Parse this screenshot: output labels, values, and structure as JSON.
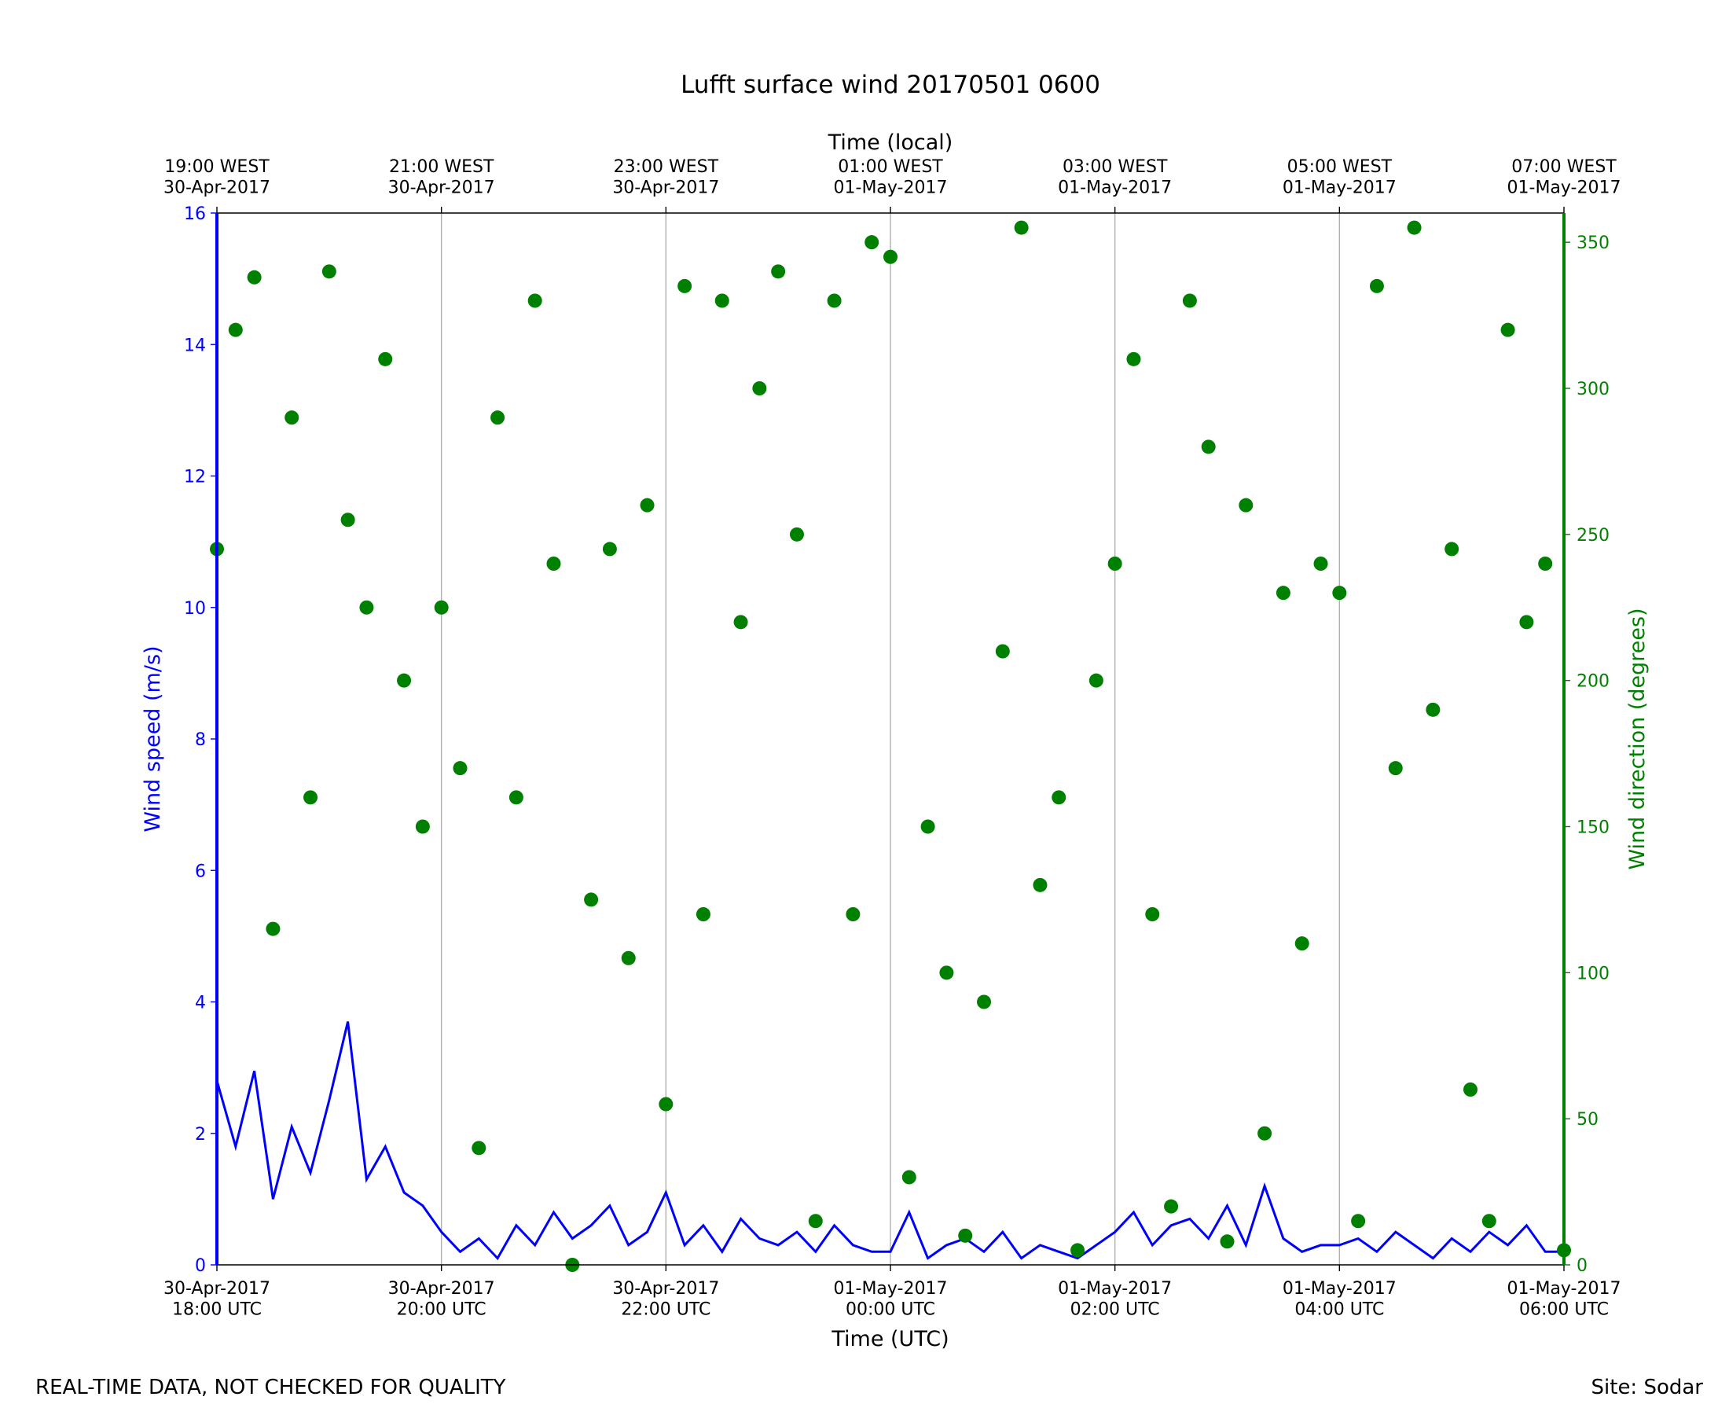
{
  "chart_data": {
    "type": "line-scatter",
    "title": "Lufft surface wind 20170501 0600",
    "x2_label": "Time (local)",
    "x_label": "Time (UTC)",
    "y_label": "Wind speed (m/s)",
    "y2_label": "Wind direction (degrees)",
    "footer_left": "REAL-TIME DATA, NOT CHECKED FOR QUALITY",
    "footer_right": "Site: Sodar",
    "xlim": [
      "2017-04-30 18:00",
      "2017-05-01 06:00"
    ],
    "xticks": [
      {
        "value": "2017-04-30 18:00",
        "label": "30-Apr-2017\n18:00 UTC"
      },
      {
        "value": "2017-04-30 20:00",
        "label": "30-Apr-2017\n20:00 UTC"
      },
      {
        "value": "2017-04-30 22:00",
        "label": "30-Apr-2017\n22:00 UTC"
      },
      {
        "value": "2017-05-01 00:00",
        "label": "01-May-2017\n00:00 UTC"
      },
      {
        "value": "2017-05-01 02:00",
        "label": "01-May-2017\n02:00 UTC"
      },
      {
        "value": "2017-05-01 04:00",
        "label": "01-May-2017\n04:00 UTC"
      },
      {
        "value": "2017-05-01 06:00",
        "label": "01-May-2017\n06:00 UTC"
      }
    ],
    "x2ticks": [
      {
        "value": "2017-04-30 18:00",
        "label": "19:00 WEST\n30-Apr-2017"
      },
      {
        "value": "2017-04-30 20:00",
        "label": "21:00 WEST\n30-Apr-2017"
      },
      {
        "value": "2017-04-30 22:00",
        "label": "23:00 WEST\n30-Apr-2017"
      },
      {
        "value": "2017-05-01 00:00",
        "label": "01:00 WEST\n01-May-2017"
      },
      {
        "value": "2017-05-01 02:00",
        "label": "03:00 WEST\n01-May-2017"
      },
      {
        "value": "2017-05-01 04:00",
        "label": "05:00 WEST\n01-May-2017"
      },
      {
        "value": "2017-05-01 06:00",
        "label": "07:00 WEST\n01-May-2017"
      }
    ],
    "ylim": [
      0,
      16
    ],
    "yticks": [
      0,
      2,
      4,
      6,
      8,
      10,
      12,
      14,
      16
    ],
    "y2lim": [
      0,
      360
    ],
    "y2ticks": [
      0,
      50,
      100,
      150,
      200,
      250,
      300,
      350
    ],
    "grid": true,
    "x": [
      "2017-04-30 18:00",
      "2017-04-30 18:10",
      "2017-04-30 18:20",
      "2017-04-30 18:30",
      "2017-04-30 18:40",
      "2017-04-30 18:50",
      "2017-04-30 19:00",
      "2017-04-30 19:10",
      "2017-04-30 19:20",
      "2017-04-30 19:30",
      "2017-04-30 19:40",
      "2017-04-30 19:50",
      "2017-04-30 20:00",
      "2017-04-30 20:10",
      "2017-04-30 20:20",
      "2017-04-30 20:30",
      "2017-04-30 20:40",
      "2017-04-30 20:50",
      "2017-04-30 21:00",
      "2017-04-30 21:10",
      "2017-04-30 21:20",
      "2017-04-30 21:30",
      "2017-04-30 21:40",
      "2017-04-30 21:50",
      "2017-04-30 22:00",
      "2017-04-30 22:10",
      "2017-04-30 22:20",
      "2017-04-30 22:30",
      "2017-04-30 22:40",
      "2017-04-30 22:50",
      "2017-04-30 23:00",
      "2017-04-30 23:10",
      "2017-04-30 23:20",
      "2017-04-30 23:30",
      "2017-04-30 23:40",
      "2017-04-30 23:50",
      "2017-05-01 00:00",
      "2017-05-01 00:10",
      "2017-05-01 00:20",
      "2017-05-01 00:30",
      "2017-05-01 00:40",
      "2017-05-01 00:50",
      "2017-05-01 01:00",
      "2017-05-01 01:10",
      "2017-05-01 01:20",
      "2017-05-01 01:30",
      "2017-05-01 01:40",
      "2017-05-01 01:50",
      "2017-05-01 02:00",
      "2017-05-01 02:10",
      "2017-05-01 02:20",
      "2017-05-01 02:30",
      "2017-05-01 02:40",
      "2017-05-01 02:50",
      "2017-05-01 03:00",
      "2017-05-01 03:10",
      "2017-05-01 03:20",
      "2017-05-01 03:30",
      "2017-05-01 03:40",
      "2017-05-01 03:50",
      "2017-05-01 04:00",
      "2017-05-01 04:10",
      "2017-05-01 04:20",
      "2017-05-01 04:30",
      "2017-05-01 04:40",
      "2017-05-01 04:50",
      "2017-05-01 05:00",
      "2017-05-01 05:10",
      "2017-05-01 05:20",
      "2017-05-01 05:30",
      "2017-05-01 05:40",
      "2017-05-01 05:50",
      "2017-05-01 06:00"
    ],
    "series": [
      {
        "name": "Wind speed",
        "color": "#0000ff",
        "kind": "line",
        "axis": "y",
        "values": [
          2.8,
          1.8,
          2.95,
          1.0,
          2.1,
          1.4,
          2.5,
          3.7,
          1.3,
          1.8,
          1.1,
          0.9,
          0.5,
          0.2,
          0.4,
          0.1,
          0.6,
          0.3,
          0.8,
          0.4,
          0.6,
          0.9,
          0.3,
          0.5,
          1.1,
          0.3,
          0.6,
          0.2,
          0.7,
          0.4,
          0.3,
          0.5,
          0.2,
          0.6,
          0.3,
          0.2,
          0.2,
          0.8,
          0.1,
          0.3,
          0.4,
          0.2,
          0.5,
          0.1,
          0.3,
          0.2,
          0.1,
          0.3,
          0.5,
          0.8,
          0.3,
          0.6,
          0.7,
          0.4,
          0.9,
          0.3,
          1.2,
          0.4,
          0.2,
          0.3,
          0.3,
          0.4,
          0.2,
          0.5,
          0.3,
          0.1,
          0.4,
          0.2,
          0.5,
          0.3,
          0.6,
          0.2,
          0.2
        ]
      },
      {
        "name": "Wind direction",
        "color": "#008000",
        "kind": "scatter",
        "axis": "y2",
        "values": [
          245,
          320,
          338,
          115,
          290,
          160,
          340,
          255,
          225,
          310,
          200,
          150,
          225,
          170,
          40,
          290,
          160,
          330,
          240,
          0,
          125,
          245,
          105,
          260,
          55,
          335,
          120,
          330,
          220,
          300,
          340,
          250,
          15,
          330,
          120,
          350,
          345,
          30,
          150,
          100,
          10,
          90,
          210,
          355,
          130,
          160,
          5,
          200,
          240,
          310,
          120,
          20,
          330,
          280,
          8,
          260,
          45,
          230,
          110,
          240,
          230,
          15,
          335,
          170,
          355,
          190,
          245,
          60,
          15,
          320,
          220,
          240,
          5
        ]
      }
    ]
  }
}
